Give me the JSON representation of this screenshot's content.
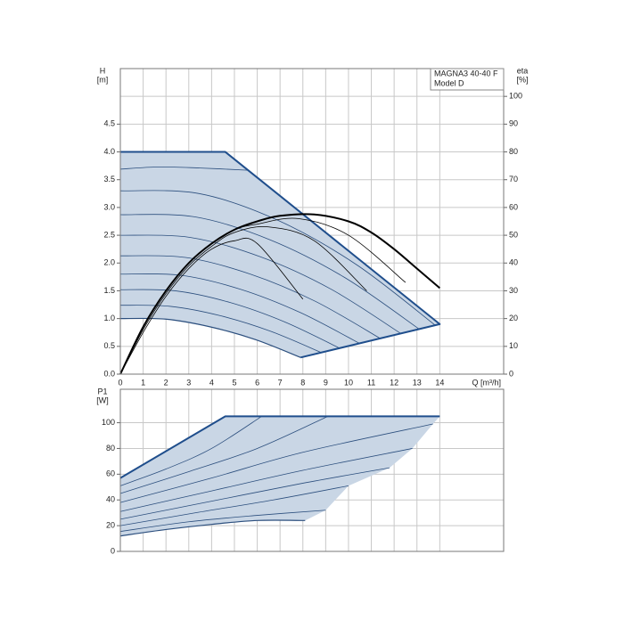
{
  "chart_data": [
    {
      "type": "line",
      "title": "MAGNA3 40-40 F",
      "subtitle": "Model D",
      "x_label": "Q [m³/h]",
      "y_label": "H",
      "y_unit": "[m]",
      "y2_label": "eta",
      "y2_unit": "[%]",
      "xlim": [
        0,
        16.8
      ],
      "xticks": [
        0,
        1,
        2,
        3,
        4,
        5,
        6,
        7,
        8,
        9,
        10,
        11,
        12,
        13,
        14
      ],
      "xtick_labels": true,
      "ylim": [
        0,
        5.5
      ],
      "yticks": [
        {
          "value": 0,
          "label": "0.0"
        },
        {
          "value": 0.5,
          "label": "0.5"
        },
        {
          "value": 1,
          "label": "1.0"
        },
        {
          "value": 1.5,
          "label": "1.5"
        },
        {
          "value": 2,
          "label": "2.0"
        },
        {
          "value": 2.5,
          "label": "2.5"
        },
        {
          "value": 3,
          "label": "3.0"
        },
        {
          "value": 3.5,
          "label": "3.5"
        },
        {
          "value": 4,
          "label": "4.0"
        },
        {
          "value": 4.5,
          "label": "4.5"
        }
      ],
      "y2lim": [
        0,
        110
      ],
      "y2ticks": [
        0,
        10,
        20,
        30,
        40,
        50,
        60,
        70,
        80,
        90,
        100
      ],
      "grid": true,
      "series": [
        {
          "fill": "#c9d6e5",
          "x": [
            0,
            4.6,
            14,
            7.9,
            5.93,
            3.95,
            1.98,
            0
          ],
          "values": [
            4,
            4,
            0.9,
            0.3,
            0.62,
            0.85,
            0.99,
            1.0
          ]
        },
        {
          "color": "#2c4f7e",
          "width": 0.8,
          "x": [
            0,
            1.7,
            3.5,
            5.6
          ],
          "values": [
            3.69,
            3.73,
            3.71,
            3.67
          ]
        },
        {
          "color": "#2c4f7e",
          "width": 0.8,
          "x": [
            0,
            3.45,
            6.9,
            10.35,
            13.8
          ],
          "values": [
            3.3,
            3.25,
            2.77,
            1.97,
            0.88
          ]
        },
        {
          "color": "#2c4f7e",
          "width": 0.8,
          "x": [
            0,
            3.28,
            6.55,
            9.83,
            13.1
          ],
          "values": [
            2.87,
            2.83,
            2.42,
            1.74,
            0.81
          ]
        },
        {
          "color": "#2c4f7e",
          "width": 0.8,
          "x": [
            0,
            3.08,
            6.15,
            9.23,
            12.3
          ],
          "values": [
            2.5,
            2.46,
            2.11,
            1.53,
            0.73
          ]
        },
        {
          "color": "#2c4f7e",
          "width": 0.8,
          "x": [
            0,
            2.85,
            5.7,
            8.55,
            11.4
          ],
          "values": [
            2.13,
            2.1,
            1.8,
            1.31,
            0.64
          ]
        },
        {
          "color": "#2c4f7e",
          "width": 0.8,
          "x": [
            0,
            2.63,
            5.25,
            7.88,
            10.5
          ],
          "values": [
            1.8,
            1.78,
            1.53,
            1.11,
            0.55
          ]
        },
        {
          "color": "#2c4f7e",
          "width": 0.8,
          "x": [
            0,
            2.4,
            4.8,
            7.2,
            9.6
          ],
          "values": [
            1.52,
            1.5,
            1.29,
            0.94,
            0.47
          ]
        },
        {
          "color": "#2c4f7e",
          "width": 0.8,
          "x": [
            0,
            2.2,
            4.4,
            6.6,
            8.8
          ],
          "values": [
            1.24,
            1.22,
            1.05,
            0.77,
            0.39
          ]
        },
        {
          "color": "#2c4f7e",
          "width": 1.2,
          "x": [
            0,
            1.98,
            3.95,
            5.93,
            7.9
          ],
          "values": [
            1.0,
            0.99,
            0.85,
            0.62,
            0.3
          ]
        },
        {
          "color": "#1f4e8c",
          "width": 2,
          "x": [
            0,
            4.6,
            14,
            7.9
          ],
          "values": [
            4,
            4,
            0.9,
            0.3
          ]
        },
        {
          "color": "#000000",
          "width": 0.8,
          "axis": "y2",
          "x": [
            0,
            1,
            2,
            3,
            4,
            5,
            6,
            8
          ],
          "values": [
            0,
            15,
            28,
            38,
            45,
            48,
            47,
            27
          ]
        },
        {
          "color": "#000000",
          "width": 0.8,
          "axis": "y2",
          "x": [
            0,
            1,
            2,
            3,
            4,
            5,
            6.5,
            8.5,
            10.8
          ],
          "values": [
            0,
            16,
            29,
            39,
            46,
            51,
            53,
            48,
            30
          ]
        },
        {
          "color": "#000000",
          "width": 0.8,
          "axis": "y2",
          "x": [
            0,
            1,
            2,
            3,
            4,
            5,
            6,
            7.8,
            10,
            12.5
          ],
          "values": [
            0,
            17,
            30,
            40,
            47,
            52,
            54,
            56,
            50,
            33
          ]
        },
        {
          "color": "#000000",
          "width": 2,
          "axis": "y2",
          "x": [
            0,
            1,
            2,
            3,
            4,
            5,
            6,
            7,
            8.5,
            10,
            11,
            12,
            13,
            14
          ],
          "values": [
            0,
            17,
            30,
            40,
            47,
            52,
            55,
            57,
            57.5,
            55,
            51,
            45,
            38,
            31
          ]
        }
      ]
    },
    {
      "type": "line",
      "y_label": "P1",
      "y_unit": "[W]",
      "xlim": [
        0,
        16.8
      ],
      "xticks": [
        0,
        1,
        2,
        3,
        4,
        5,
        6,
        7,
        8,
        9,
        10,
        11,
        12,
        13,
        14
      ],
      "xtick_labels": false,
      "ylim": [
        0,
        126
      ],
      "yticks": [
        0,
        20,
        40,
        60,
        80,
        100
      ],
      "grid": true,
      "series": [
        {
          "fill": "#c9d6e5",
          "x": [
            0,
            4.6,
            14,
            13.7,
            12.8,
            11.8,
            10,
            9,
            8.1,
            6,
            4,
            2,
            0
          ],
          "values": [
            57,
            105,
            105,
            99,
            80,
            65,
            51,
            32,
            24,
            24,
            21,
            17,
            12
          ]
        },
        {
          "color": "#2c4f7e",
          "width": 0.8,
          "x": [
            0,
            3,
            6,
            9
          ],
          "values": [
            15.5,
            23,
            28,
            32
          ]
        },
        {
          "color": "#2c4f7e",
          "width": 0.8,
          "x": [
            0,
            3.3,
            6.7,
            10
          ],
          "values": [
            20,
            30,
            40,
            51
          ]
        },
        {
          "color": "#2c4f7e",
          "width": 0.8,
          "x": [
            0,
            4,
            8,
            11.8
          ],
          "values": [
            25,
            39,
            53,
            65
          ]
        },
        {
          "color": "#2c4f7e",
          "width": 0.8,
          "x": [
            0,
            4,
            8,
            12.8
          ],
          "values": [
            31,
            47,
            63,
            80
          ]
        },
        {
          "color": "#2c4f7e",
          "width": 0.8,
          "x": [
            0,
            4,
            8,
            13.7
          ],
          "values": [
            38,
            57,
            77,
            99
          ]
        },
        {
          "color": "#2c4f7e",
          "width": 0.8,
          "x": [
            0,
            3,
            6,
            9.1
          ],
          "values": [
            45,
            62,
            80,
            105
          ]
        },
        {
          "color": "#2c4f7e",
          "width": 0.8,
          "x": [
            0,
            2,
            4,
            6.2
          ],
          "values": [
            51,
            64,
            80,
            105
          ]
        },
        {
          "color": "#2c4f7e",
          "width": 1.2,
          "x": [
            0,
            2,
            4,
            6,
            8.1
          ],
          "values": [
            12,
            17,
            21,
            24,
            24
          ]
        },
        {
          "color": "#1f4e8c",
          "width": 2,
          "x": [
            0,
            4.6,
            14
          ],
          "values": [
            57,
            105,
            105
          ]
        }
      ]
    }
  ]
}
